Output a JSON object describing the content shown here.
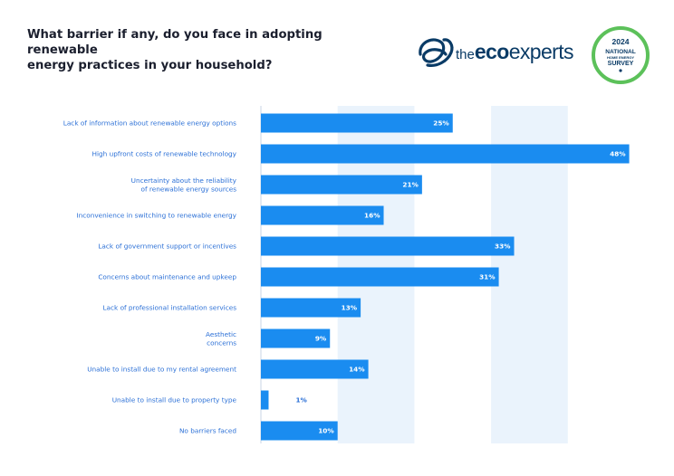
{
  "header": {
    "title_line1": "What barrier if any, do you face in adopting renewable",
    "title_line2": "energy practices in your household?"
  },
  "brand": {
    "name_prefix": "the",
    "name_eco": "eco",
    "name_rest": "experts",
    "badge_year": "2024",
    "badge_line1": "NATIONAL",
    "badge_line2": "HOME ENERGY",
    "badge_line3": "SURVEY"
  },
  "colors": {
    "bar": "#1a8cf0",
    "band": "#eaf3fc",
    "label": "#2a6fd6",
    "brand": "#0a3b66",
    "badge_ring": "#5cc15a"
  },
  "chart_data": {
    "type": "bar",
    "orientation": "horizontal",
    "categories": [
      [
        "Lack of information about renewable energy options"
      ],
      [
        "High upfront costs of  renewable technology"
      ],
      [
        "Uncertainty about the reliability",
        "of  renewable energy sources"
      ],
      [
        "Inconvenience in switching to renewable energy"
      ],
      [
        "Lack of government support or incentives"
      ],
      [
        "Concerns about maintenance and upkeep"
      ],
      [
        "Lack of professional installation services"
      ],
      [
        "Aesthetic",
        "concerns"
      ],
      [
        "Unable to install due to my rental agreement"
      ],
      [
        "Unable to install due to property type"
      ],
      [
        "No barriers faced"
      ]
    ],
    "values": [
      25,
      48,
      21,
      16,
      33,
      31,
      13,
      9,
      14,
      1,
      10
    ],
    "value_labels": [
      "25%",
      "48%",
      "21%",
      "16%",
      "33%",
      "31%",
      "13%",
      "9%",
      "14%",
      "1%",
      "10%"
    ],
    "xlim": [
      0,
      50
    ],
    "grid": "alternating vertical bands",
    "legend": "none"
  }
}
